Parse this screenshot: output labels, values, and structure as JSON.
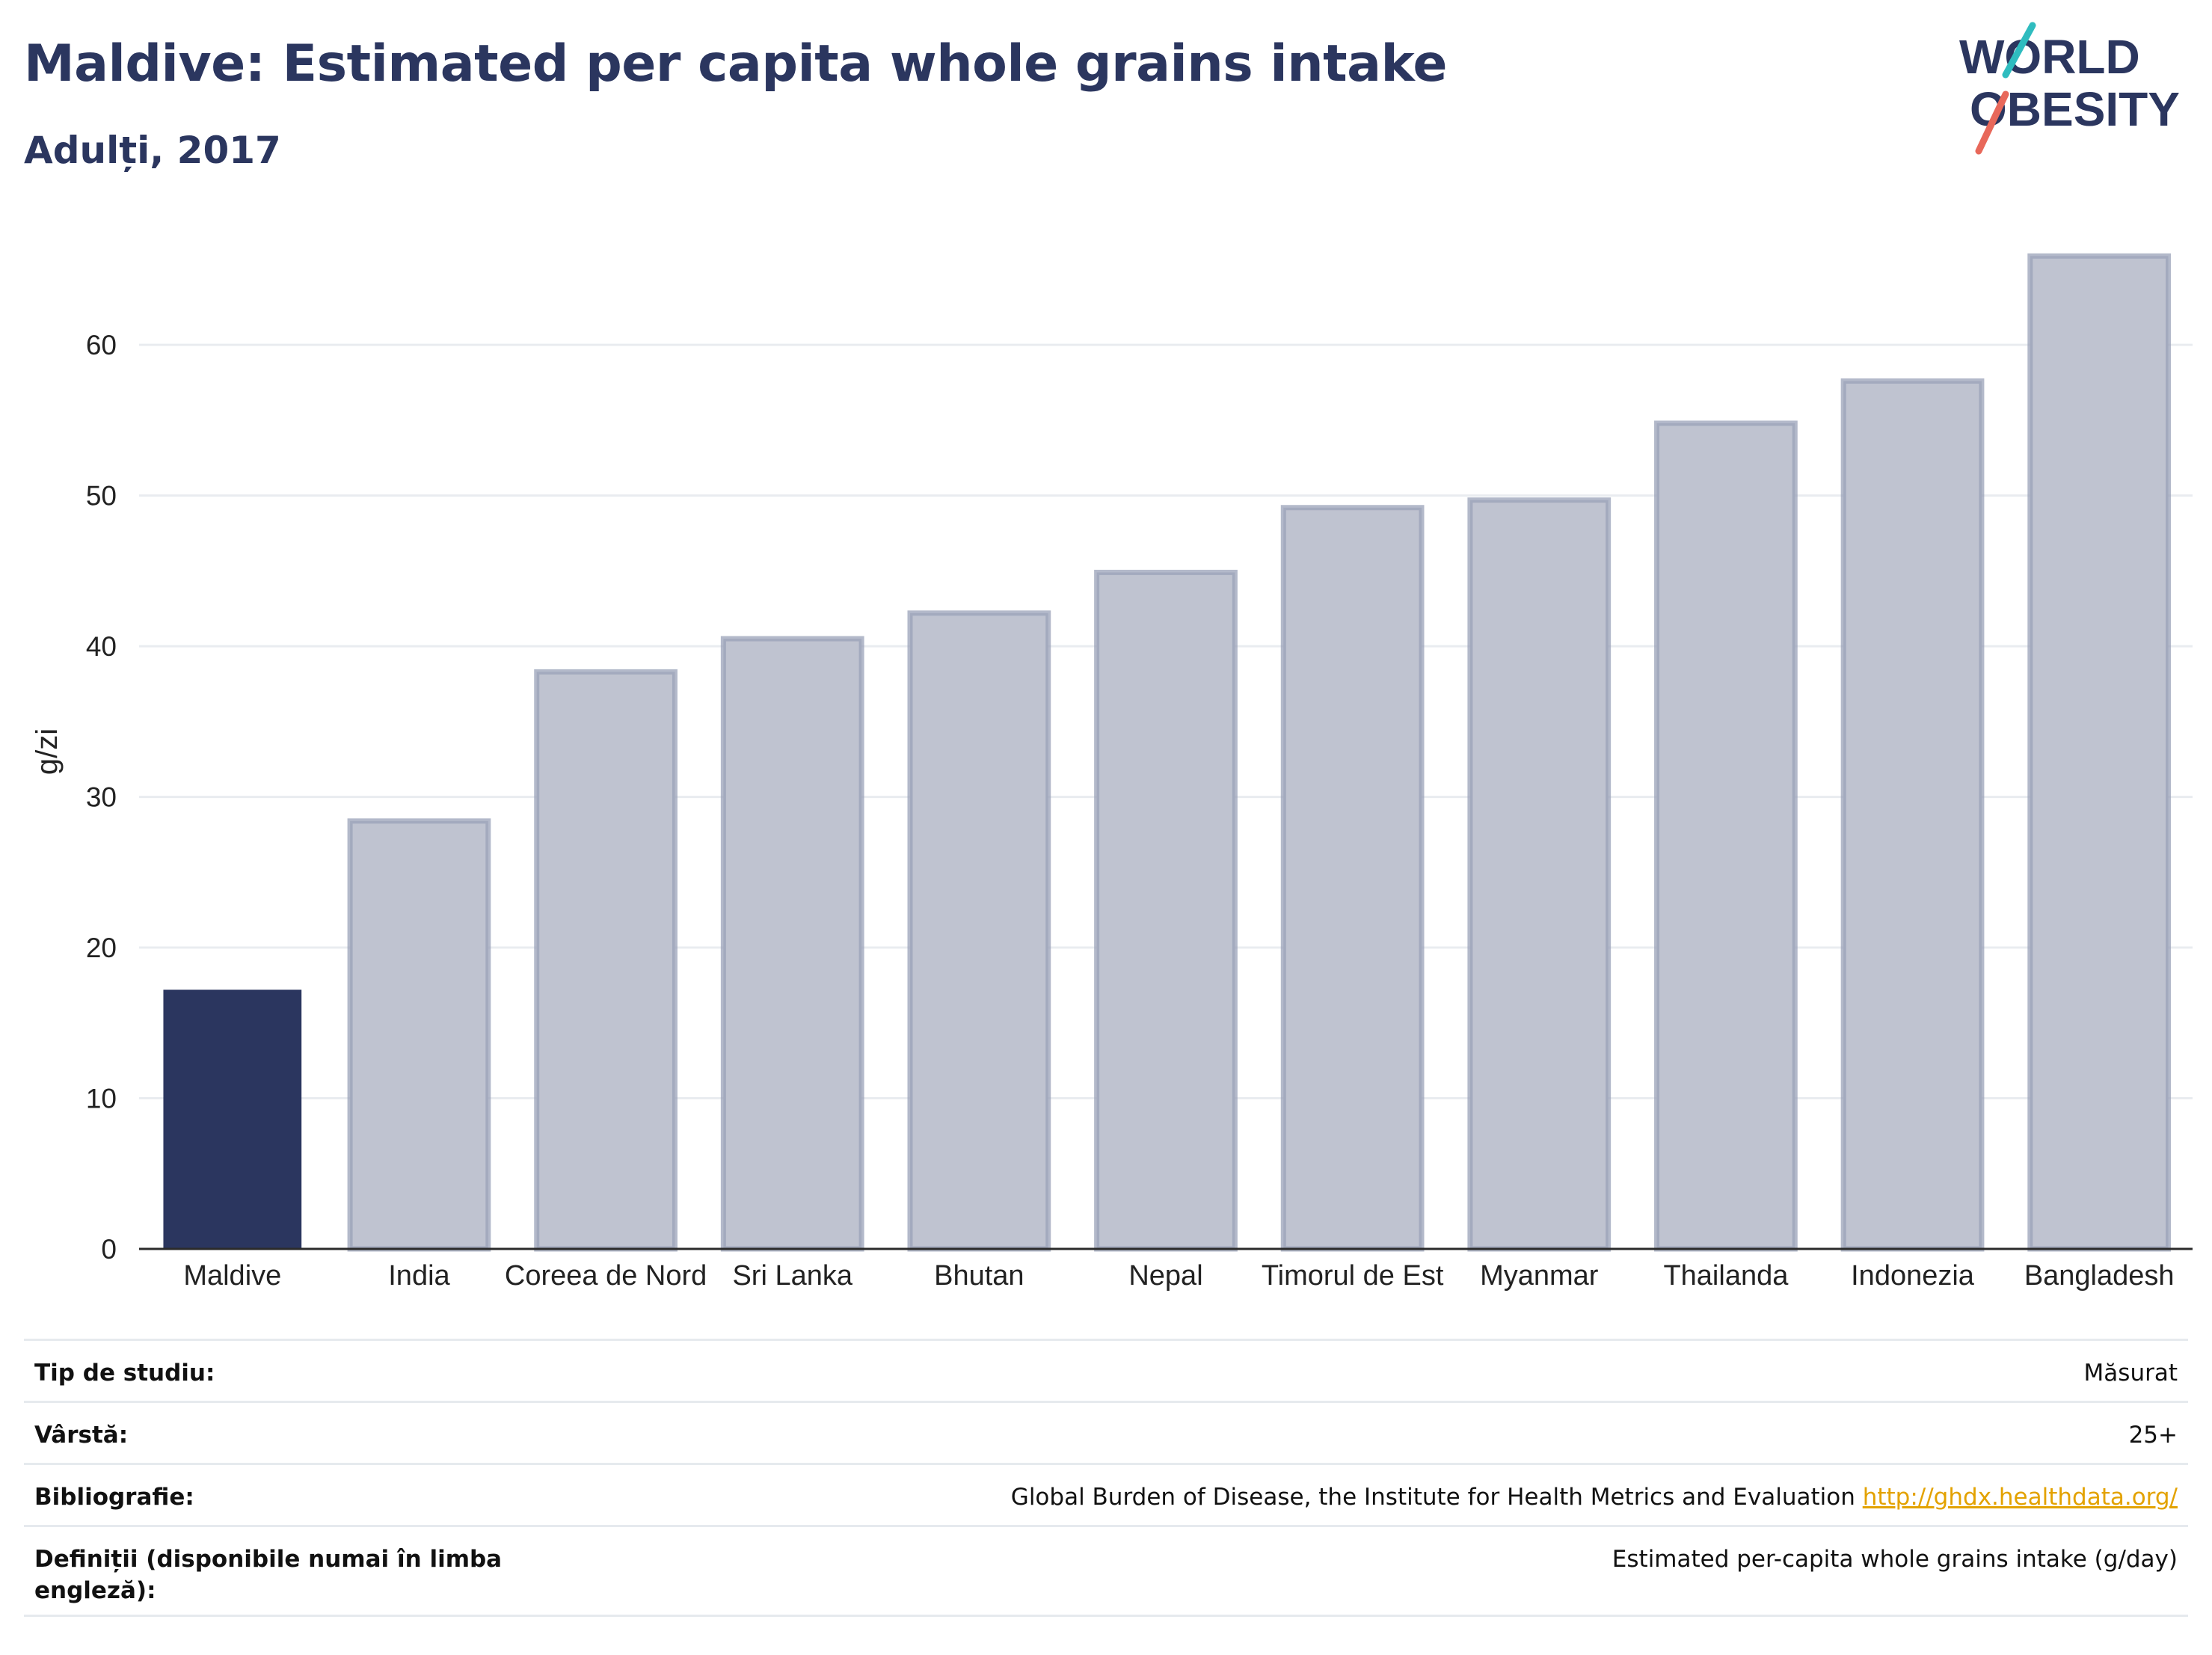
{
  "header": {
    "title": "Maldive: Estimated per capita whole grains intake",
    "subtitle": "Adulți, 2017"
  },
  "logo": {
    "line1": "WORLD",
    "line2": "OBESITY",
    "slash_colors": [
      "#2fbcbf",
      "#e8685a"
    ]
  },
  "colors": {
    "highlight": "#2b365f",
    "other_fill": "#bfc3d0",
    "other_stroke": "#9aa1b8",
    "grid": "#e9ecf0",
    "axis": "#2b2b2b"
  },
  "chart_data": {
    "type": "bar",
    "categories": [
      "Maldive",
      "India",
      "Coreea de Nord",
      "Sri Lanka",
      "Bhutan",
      "Nepal",
      "Timorul de Est",
      "Myanmar",
      "Thailanda",
      "Indonezia",
      "Bangladesh"
    ],
    "values": [
      17.2,
      28.4,
      38.3,
      40.5,
      42.2,
      44.9,
      49.2,
      49.7,
      54.8,
      57.6,
      65.9
    ],
    "highlight_category": "Maldive",
    "ylabel": "g/zi",
    "xlabel": "",
    "ylim": [
      0,
      68
    ],
    "yticks": [
      0,
      10,
      20,
      30,
      40,
      50,
      60
    ],
    "grid": true,
    "legend": "none"
  },
  "meta": {
    "study_type_label": "Tip de studiu:",
    "study_type_value": "Măsurat",
    "age_label": "Vârstă:",
    "age_value": "25+",
    "bibliography_label": "Bibliografie:",
    "bibliography_text": "Global Burden of Disease, the Institute for Health Metrics and Evaluation",
    "bibliography_link": "http://ghdx.healthdata.org/",
    "definitions_label": "Definiții (disponibile numai în limba engleză):",
    "definitions_value": "Estimated per-capita whole grains intake (g/day)"
  }
}
